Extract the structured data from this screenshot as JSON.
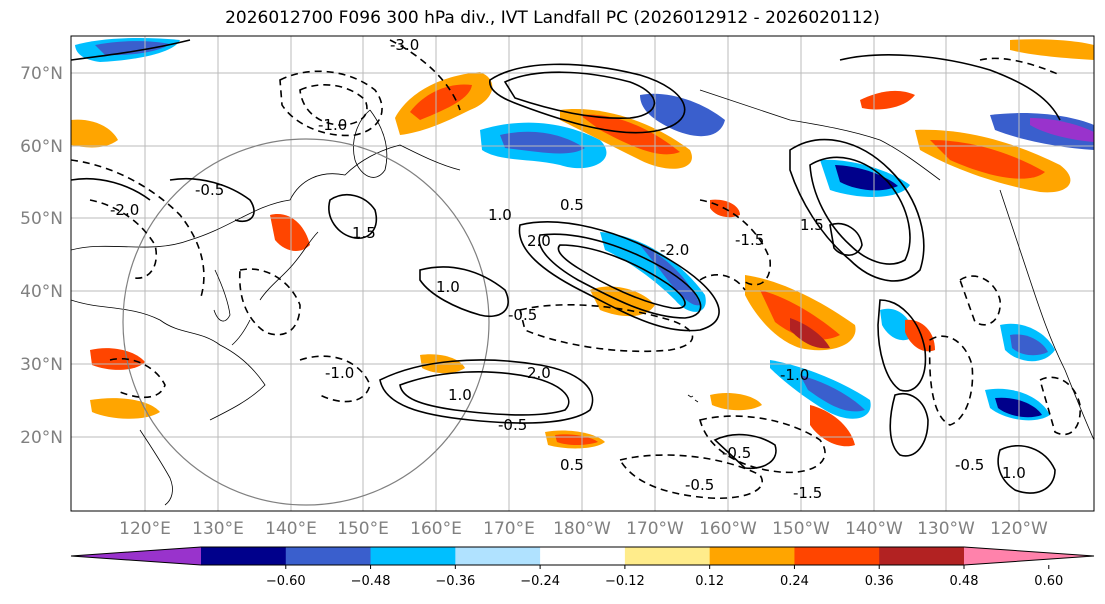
{
  "title": "2026012700 F096 300 hPa div., IVT Landfall PC (2026012912 - 2026020112)",
  "map": {
    "lat_labels": [
      "70°N",
      "60°N",
      "50°N",
      "40°N",
      "30°N",
      "20°N"
    ],
    "lon_labels": [
      "120°E",
      "130°E",
      "140°E",
      "150°E",
      "160°E",
      "170°E",
      "180°W",
      "170°W",
      "160°W",
      "150°W",
      "140°W",
      "130°W",
      "120°W"
    ],
    "contour_labels": [
      "-1.0",
      "-0.5",
      "-2.0",
      "1.0",
      "2.0",
      "-1.5",
      "0.5",
      "1.5",
      "-0.5",
      "1.0",
      "-1.0",
      "-0.5",
      "-1.5",
      "2.0",
      "-0.5",
      "0.5",
      "-1.0",
      "1.0",
      "-2.0",
      "-0.5",
      "1.0",
      "-0.5",
      "1.5",
      "-3.0"
    ]
  },
  "colorbar": {
    "tick_labels": [
      "−0.60",
      "−0.48",
      "−0.36",
      "−0.24",
      "−0.12",
      "0.12",
      "0.24",
      "0.36",
      "0.48",
      "0.60"
    ],
    "colors": [
      "#9933cc",
      "#00008b",
      "#3a5fcd",
      "#00bfff",
      "#b0e2ff",
      "#ffffff",
      "#ffec8b",
      "#ffa500",
      "#ff4500",
      "#b22222",
      "#ff82ab"
    ]
  }
}
